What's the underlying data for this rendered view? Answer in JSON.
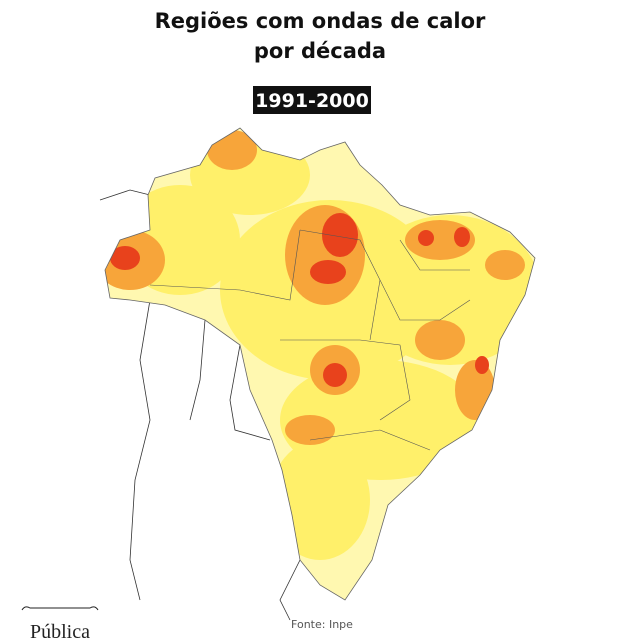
{
  "header": {
    "title": [
      "Regiões com ondas de calor",
      "por década"
    ],
    "period": "1991-2000"
  },
  "footer": {
    "source": "Fonte: Inpe",
    "brand": "Pública"
  }
}
